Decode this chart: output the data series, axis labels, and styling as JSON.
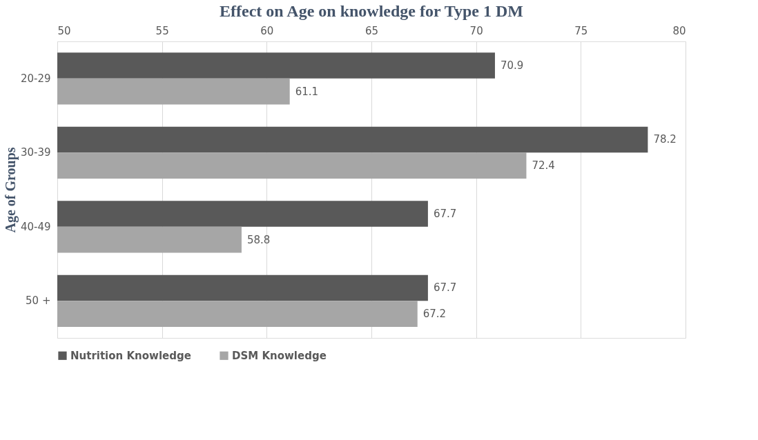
{
  "chart_data": {
    "type": "bar",
    "orientation": "horizontal",
    "title": "Effect on Age on knowledge for Type 1 DM",
    "ylabel": "Age of Groups",
    "categories": [
      "20-29",
      "30-39",
      "40-49",
      "50 +"
    ],
    "series": [
      {
        "name": "Nutrition Knowledge",
        "color": "#595959",
        "values": [
          70.9,
          78.2,
          67.7,
          67.7
        ]
      },
      {
        "name": "DSM Knowledge",
        "color": "#a6a6a6",
        "values": [
          61.1,
          72.4,
          58.8,
          67.2
        ]
      }
    ],
    "xlim": [
      50,
      80
    ],
    "xticks": [
      50,
      55,
      60,
      65,
      70,
      75,
      80
    ],
    "grid": "x",
    "legend": "bottom",
    "data_labels": true
  }
}
